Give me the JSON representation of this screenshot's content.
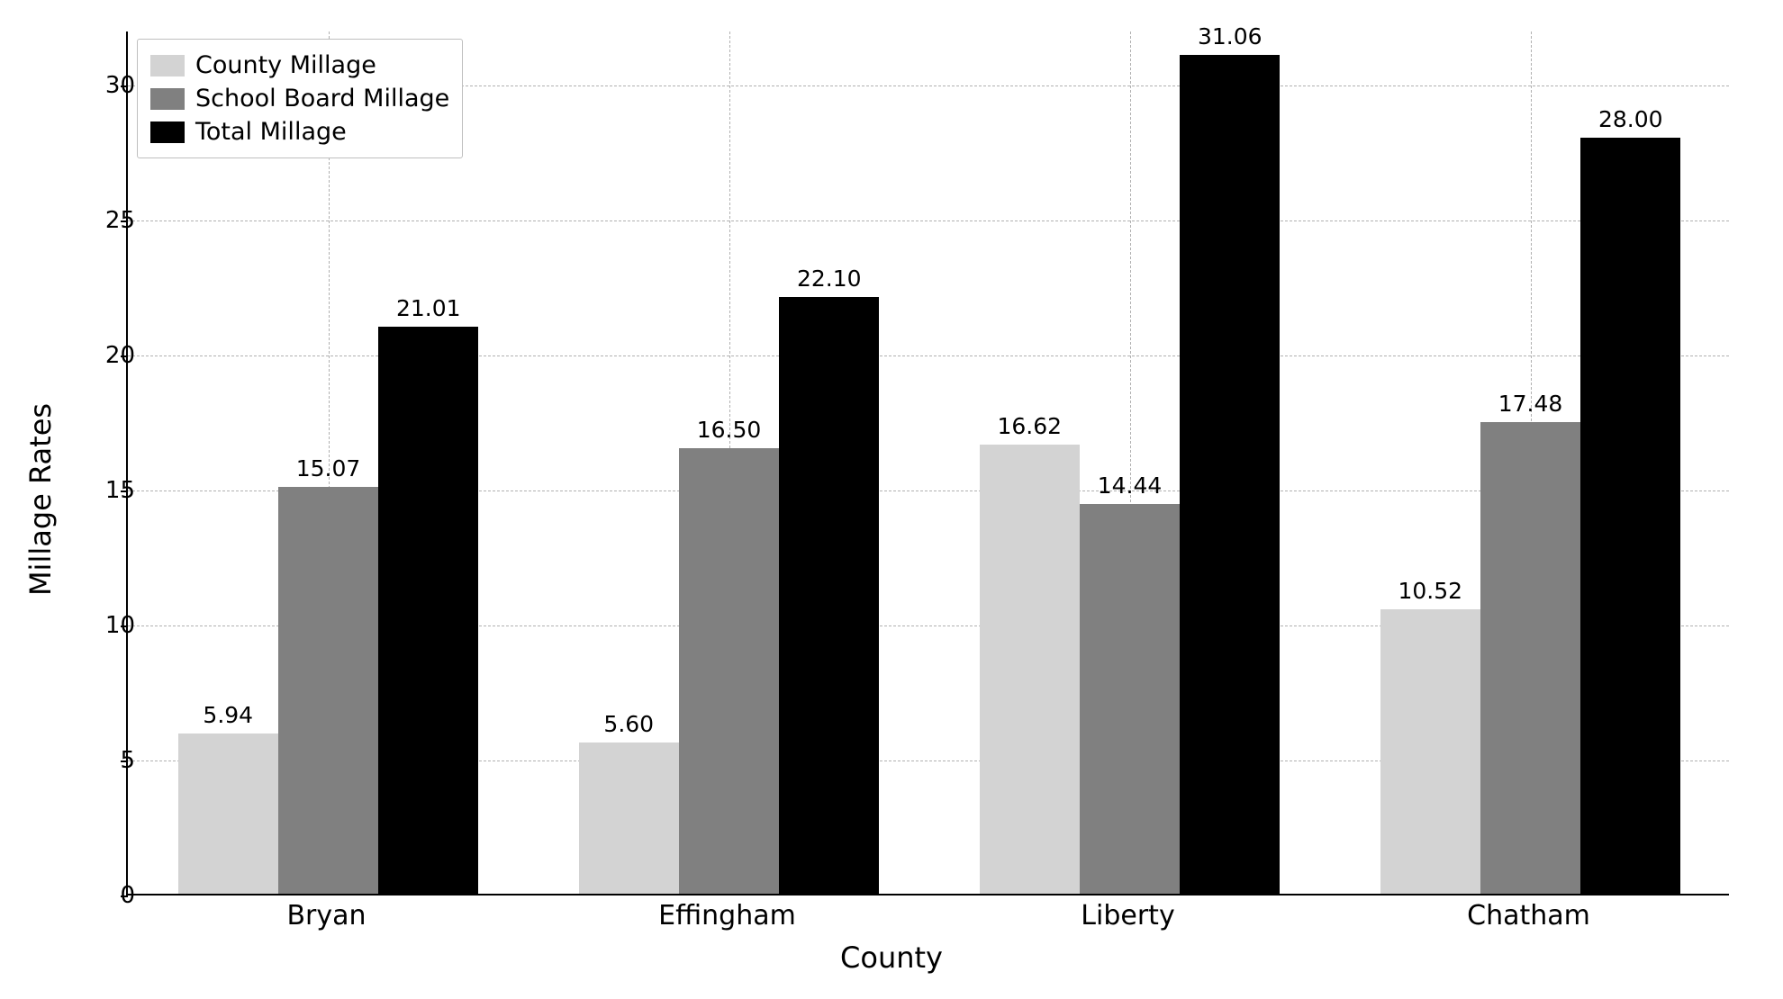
{
  "chart": {
    "type": "bar",
    "xlabel": "County",
    "ylabel": "Millage Rates",
    "label_fontsize": 32,
    "tick_fontsize_y": 26,
    "tick_fontsize_x": 30,
    "categories": [
      "Bryan",
      "Effingham",
      "Liberty",
      "Chatham"
    ],
    "series": [
      {
        "name": "County Millage",
        "color": "#d3d3d3",
        "values": [
          5.94,
          5.6,
          16.62,
          10.52
        ]
      },
      {
        "name": "School Board Millage",
        "color": "#808080",
        "values": [
          15.07,
          16.5,
          14.44,
          17.48
        ]
      },
      {
        "name": "Total Millage",
        "color": "#000000",
        "values": [
          21.01,
          22.1,
          31.06,
          28.0
        ]
      }
    ],
    "ylim": [
      0,
      32
    ],
    "yticks": [
      0,
      5,
      10,
      15,
      20,
      25,
      30
    ],
    "grid_color": "#b0b0b0",
    "grid_style": "dashed",
    "background_color": "#ffffff",
    "axis_color": "#000000",
    "bar_group_width": 0.78,
    "bar_width": 0.25,
    "legend": {
      "position": "upper-left",
      "border_color": "#bfbfbf",
      "fontsize": 27
    },
    "value_label_fontsize": 25,
    "value_label_format": "2dp"
  }
}
